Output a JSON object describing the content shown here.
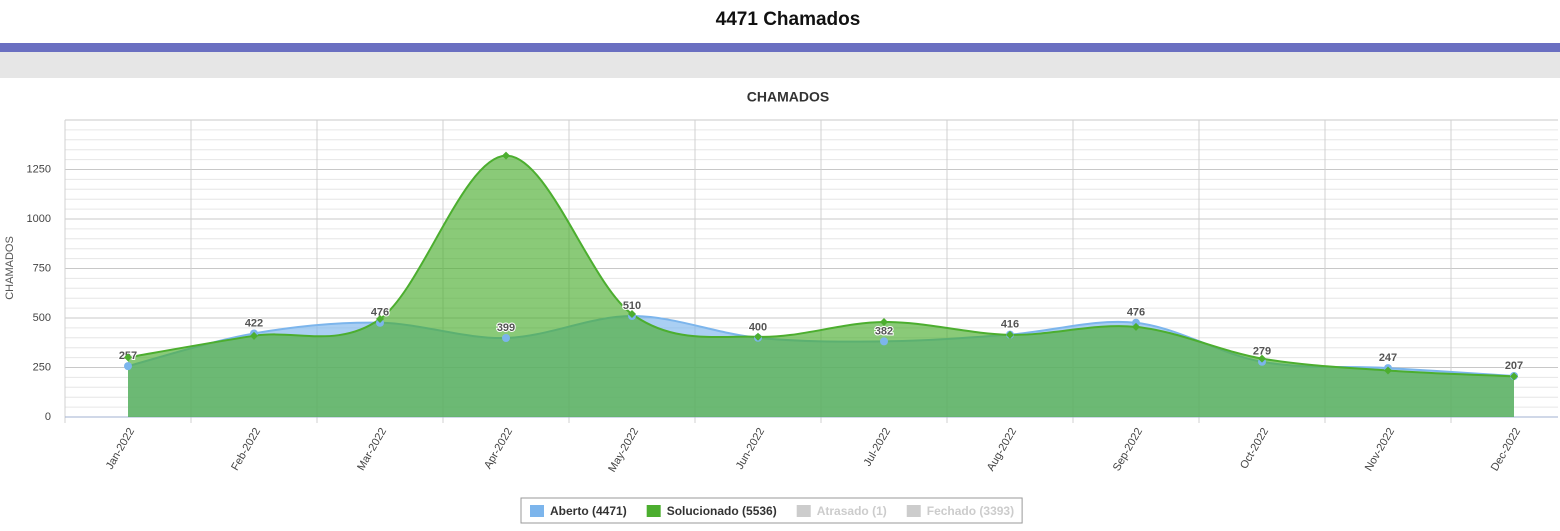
{
  "page_title": "4471 Chamados",
  "chart_data": {
    "type": "area",
    "title": "CHAMADOS",
    "y_label": "CHAMADOS",
    "categories": [
      "Jan-2022",
      "Feb-2022",
      "Mar-2022",
      "Apr-2022",
      "May-2022",
      "Jun-2022",
      "Jul-2022",
      "Aug-2022",
      "Sep-2022",
      "Oct-2022",
      "Nov-2022",
      "Dec-2022"
    ],
    "series": [
      {
        "name": "Aberto (4471)",
        "color": "#7cb5ec",
        "values": [
          257,
          422,
          476,
          399,
          510,
          400,
          382,
          416,
          476,
          279,
          247,
          207
        ],
        "data_labels": true,
        "visible": true
      },
      {
        "name": "Solucionado (5536)",
        "color": "#4cae2f",
        "values": [
          301,
          410,
          495,
          1320,
          520,
          405,
          480,
          415,
          455,
          295,
          235,
          205
        ],
        "data_labels": false,
        "visible": true
      },
      {
        "name": "Atrasado (1)",
        "color": "#cccccc",
        "visible": false
      },
      {
        "name": "Fechado (3393)",
        "color": "#cccccc",
        "visible": false
      }
    ],
    "ylim": [
      0,
      1500
    ],
    "yticks": [
      0,
      250,
      500,
      750,
      1000,
      1250
    ],
    "grid": true
  }
}
